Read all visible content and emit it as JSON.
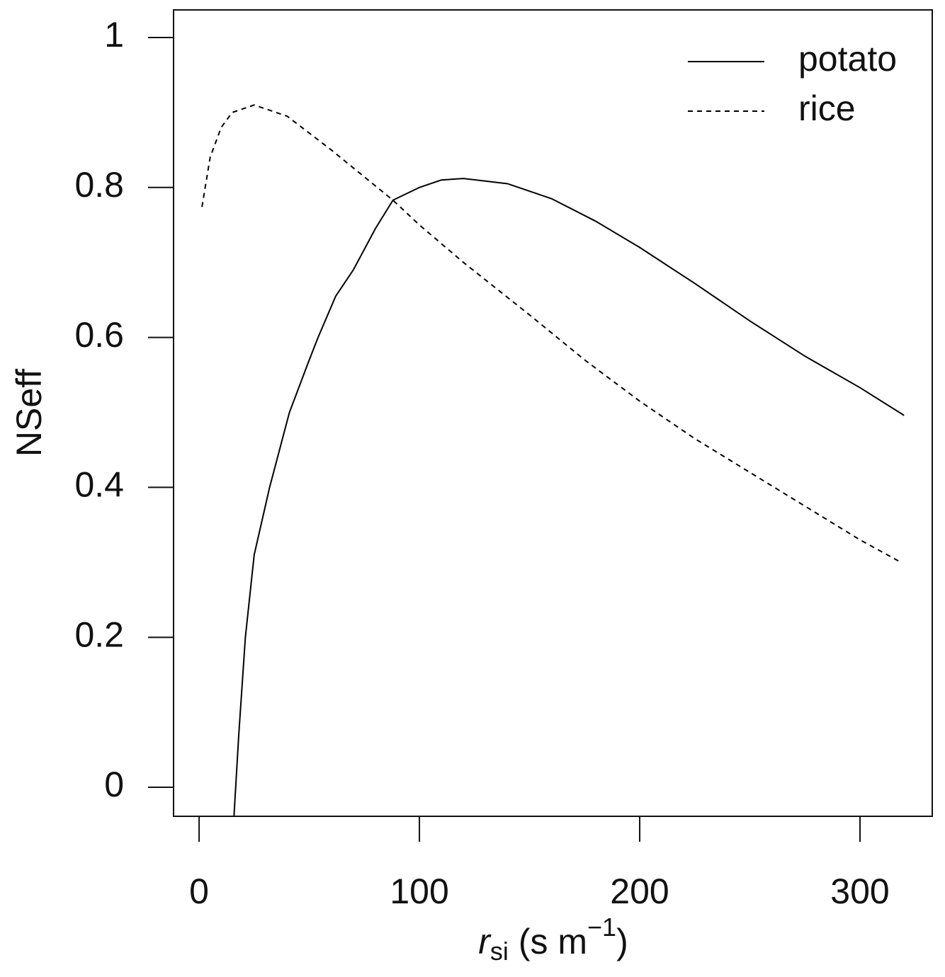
{
  "chart_data": {
    "type": "line",
    "xlabel_parts": [
      "r",
      "si",
      " (s m",
      "−1",
      ")"
    ],
    "ylabel": "NSeff",
    "xlim": [
      -11.6,
      332.8
    ],
    "ylim": [
      -0.0387,
      1.0368
    ],
    "xticks": [
      0,
      100,
      200,
      300
    ],
    "yticks": [
      0,
      0.2,
      0.4,
      0.6,
      0.8,
      1
    ],
    "legend": "top-right",
    "series": [
      {
        "name": "potato",
        "color": "#000000",
        "style": "solid",
        "x": [
          15.8,
          18,
          21,
          25,
          32,
          41,
          50,
          54,
          62,
          70,
          80,
          88,
          100,
          110,
          120,
          140,
          160,
          180,
          200,
          225,
          250,
          275,
          300,
          320
        ],
        "values": [
          -0.04,
          0.07,
          0.2,
          0.31,
          0.4,
          0.5,
          0.57,
          0.6,
          0.655,
          0.69,
          0.745,
          0.783,
          0.8,
          0.81,
          0.812,
          0.805,
          0.785,
          0.755,
          0.72,
          0.672,
          0.622,
          0.575,
          0.533,
          0.496
        ]
      },
      {
        "name": "rice",
        "color": "#000000",
        "style": "dashed",
        "x": [
          1.3,
          5,
          10,
          15,
          25,
          40,
          60,
          88,
          100,
          120,
          150,
          175,
          200,
          225,
          250,
          275,
          300,
          318
        ],
        "values": [
          0.774,
          0.84,
          0.88,
          0.9,
          0.91,
          0.895,
          0.85,
          0.783,
          0.75,
          0.7,
          0.63,
          0.57,
          0.515,
          0.465,
          0.42,
          0.375,
          0.33,
          0.301
        ]
      }
    ]
  }
}
